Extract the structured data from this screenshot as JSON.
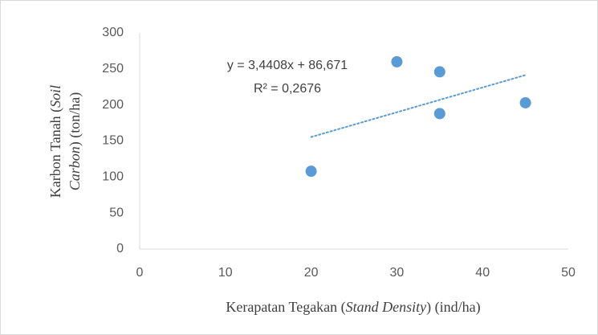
{
  "chart_data": {
    "type": "scatter",
    "x": [
      20,
      30,
      35,
      35,
      45
    ],
    "values": [
      108,
      260,
      246,
      188,
      203
    ],
    "color": "#5b9bd5",
    "xlim": [
      0,
      50
    ],
    "xticks": [
      0,
      10,
      20,
      30,
      40,
      50
    ],
    "ylim": [
      0,
      300
    ],
    "yticks": [
      0,
      50,
      100,
      150,
      200,
      250,
      300
    ],
    "grid": false,
    "xlabel": [
      "Kerapatan Tegakan (",
      "Stand Density",
      ") (ind/ha)"
    ],
    "ylabel": [
      [
        "Karbon Tanah (",
        "Soil"
      ],
      [
        "Carbon",
        ") (ton/ha)"
      ]
    ],
    "trendline": {
      "x": [
        20,
        45
      ],
      "y": [
        155.5,
        241.5
      ],
      "equation": "y = 3,4408x + 86,671",
      "r2": "R² = 0,2676"
    }
  }
}
